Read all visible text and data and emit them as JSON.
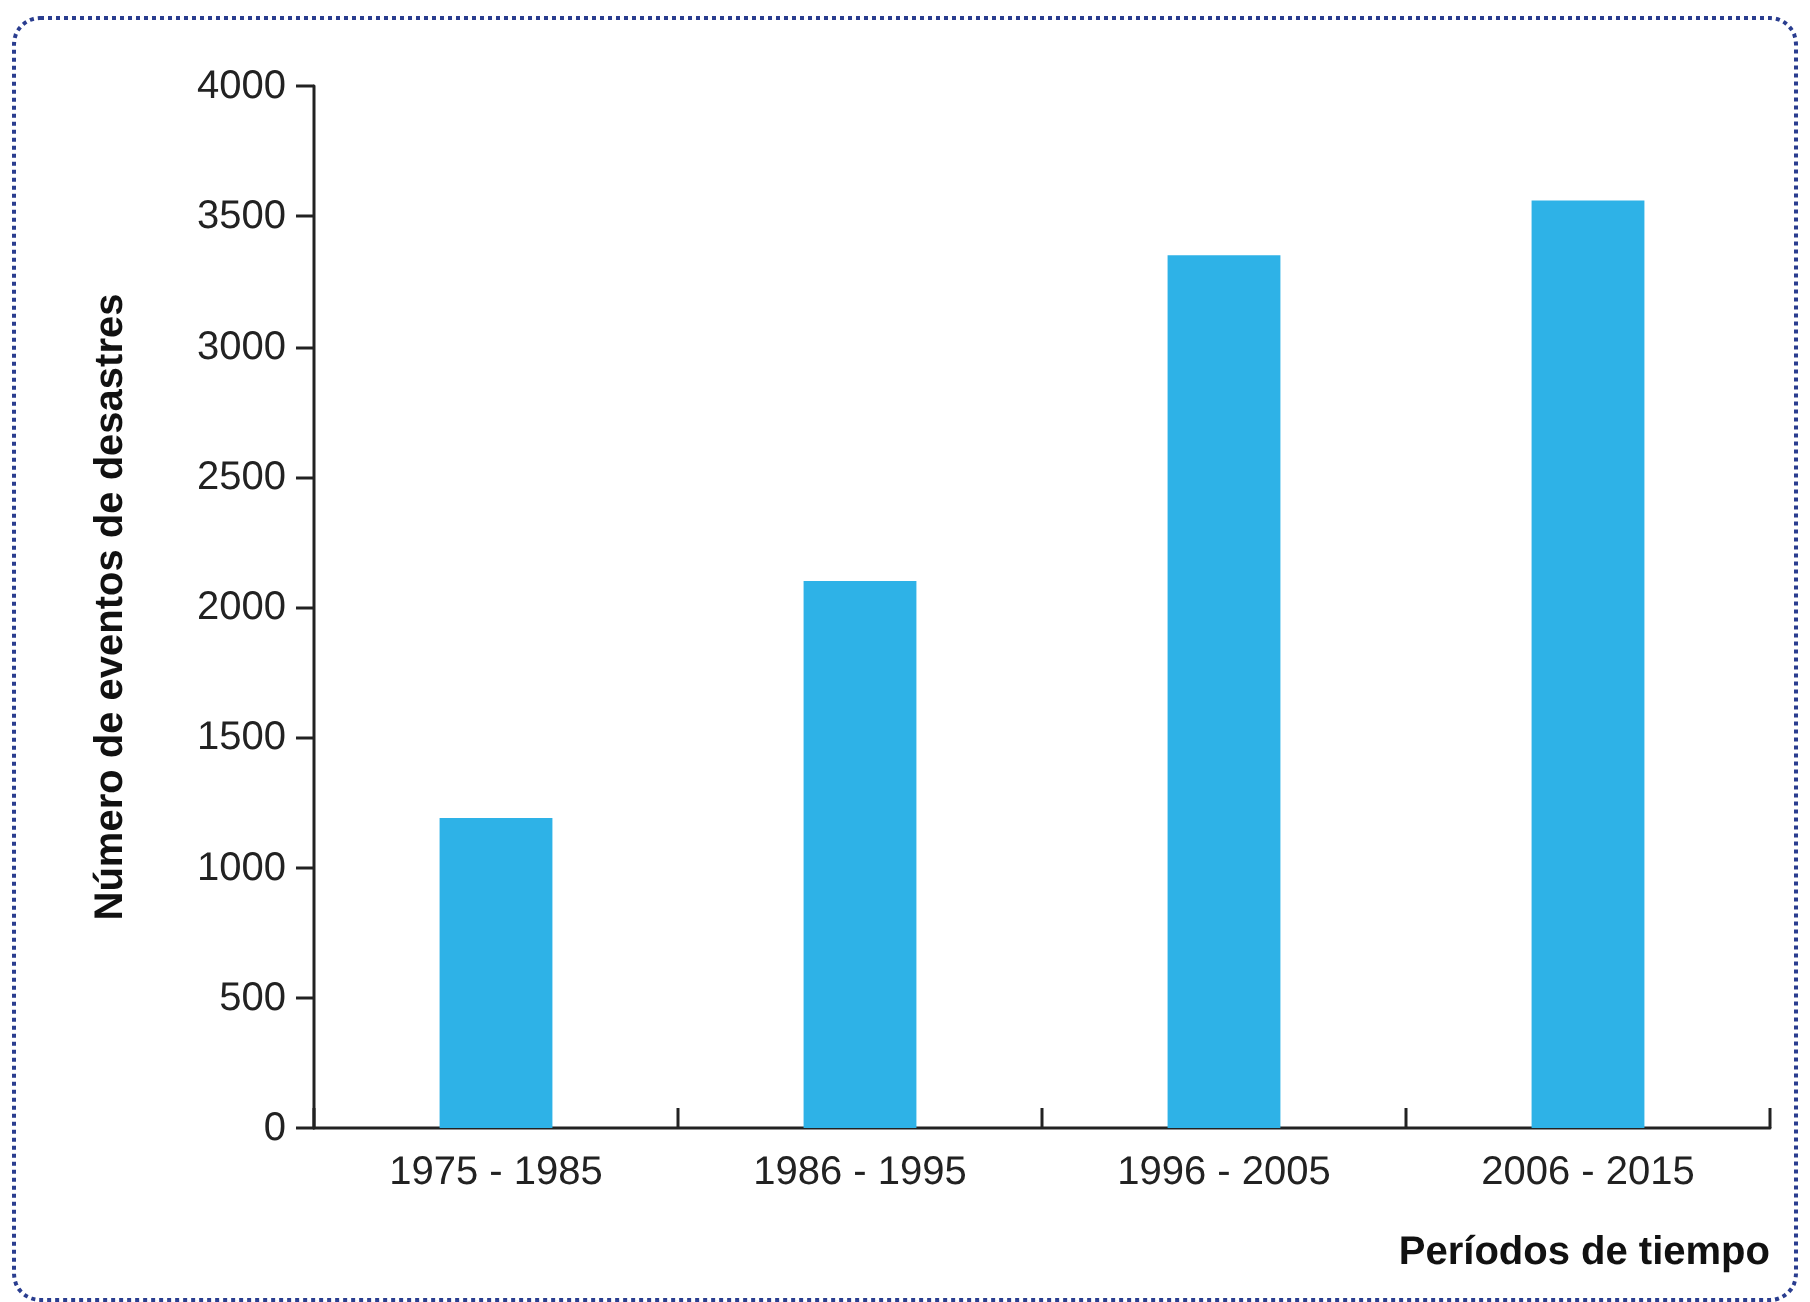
{
  "chart_data": {
    "type": "bar",
    "xlabel": "Períodos de tiempo",
    "ylabel": "Número de eventos de desastres",
    "categories": [
      "1975 - 1985",
      "1986 - 1995",
      "1996 - 2005",
      "2006 - 2015"
    ],
    "values": [
      1190,
      2100,
      3350,
      3560
    ],
    "color": "#2eb2e7",
    "ylim": [
      0,
      4000
    ],
    "yticks": [
      0,
      500,
      1000,
      1500,
      2000,
      2500,
      3000,
      3500,
      4000
    ],
    "grid": false
  }
}
